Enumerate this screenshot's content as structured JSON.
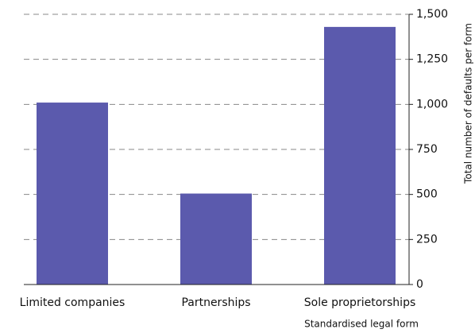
{
  "chart_data": {
    "type": "bar",
    "categories": [
      "Limited companies",
      "Partnerships",
      "Sole proprietorships"
    ],
    "values": [
      1010,
      505,
      1430
    ],
    "color": "#5b5aad",
    "ylim": [
      0,
      1500
    ],
    "yticks": [
      0,
      250,
      500,
      750,
      {
        "value": 1000,
        "label": "1,000"
      },
      {
        "value": 1250,
        "label": "1,250"
      },
      {
        "value": 1500,
        "label": "1,500"
      }
    ],
    "grid": true,
    "y_axis_label": "Total number of defaults per form",
    "x_axis_label": "Standardised legal form"
  }
}
